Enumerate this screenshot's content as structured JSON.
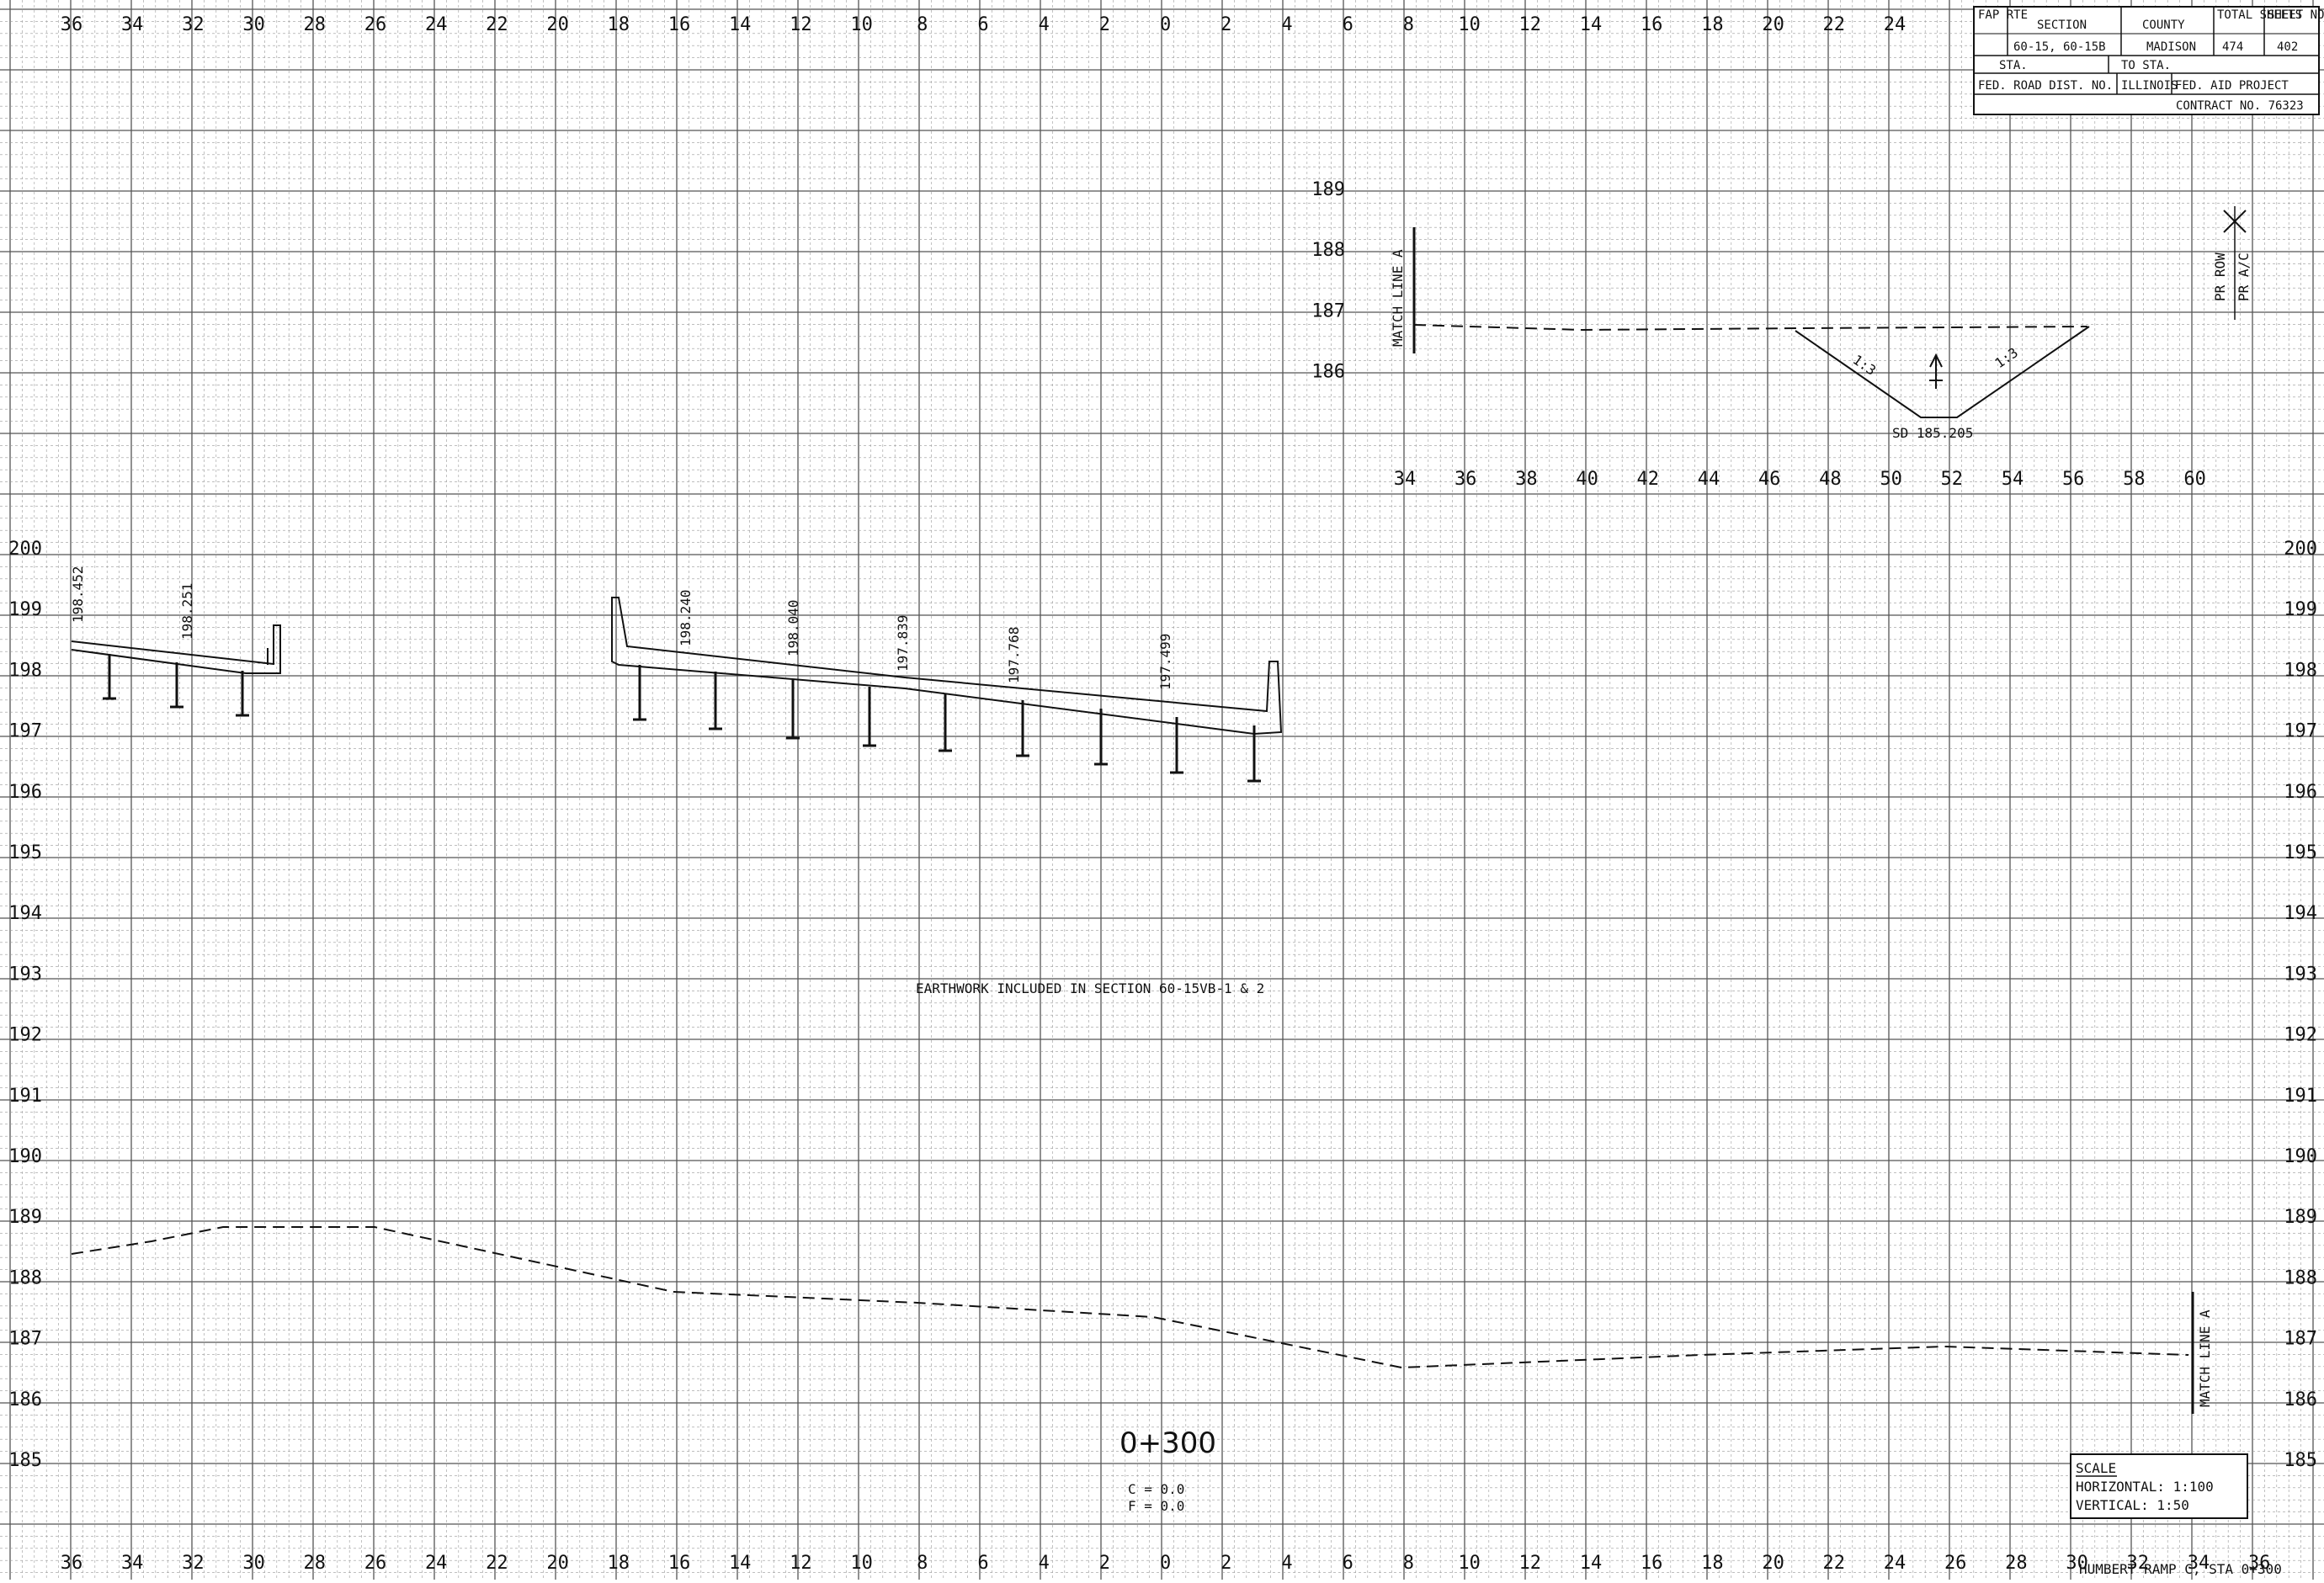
{
  "title_block": {
    "fap_rte_label": "FAP RTE",
    "section_label": "SECTION",
    "county_label": "COUNTY",
    "total_sheets_label": "TOTAL SHEETS",
    "sheet_no_label": "SHEET NO.",
    "section_value": "60-15, 60-15B",
    "county_value": "MADISON",
    "total_sheets_value": "474",
    "sheet_no_value": "402",
    "sta_label": "STA.",
    "to_sta_label": "TO STA.",
    "fed_road_label": "FED. ROAD DIST. NO.",
    "state_label": "ILLINOIS",
    "fed_aid_label": "FED. AID PROJECT",
    "contract_label": "CONTRACT NO. 76323"
  },
  "top_axis": [
    "36",
    "34",
    "32",
    "30",
    "28",
    "26",
    "24",
    "22",
    "20",
    "18",
    "16",
    "14",
    "12",
    "10",
    "8",
    "6",
    "4",
    "2",
    "0",
    "2",
    "4",
    "6",
    "8",
    "10",
    "12",
    "14",
    "16",
    "18",
    "20",
    "22",
    "24"
  ],
  "bottom_axis": [
    "36",
    "34",
    "32",
    "30",
    "28",
    "26",
    "24",
    "22",
    "20",
    "18",
    "16",
    "14",
    "12",
    "10",
    "8",
    "6",
    "4",
    "2",
    "0",
    "2",
    "4",
    "6",
    "8",
    "10",
    "12",
    "14",
    "16",
    "18",
    "20",
    "22",
    "24",
    "26",
    "28",
    "30",
    "32",
    "34",
    "36"
  ],
  "inset_axis_x": [
    "34",
    "36",
    "38",
    "40",
    "42",
    "44",
    "46",
    "48",
    "50",
    "52",
    "54",
    "56",
    "58",
    "60"
  ],
  "inset_axis_y": [
    "189",
    "188",
    "187",
    "186"
  ],
  "main_axis_y": [
    "200",
    "199",
    "198",
    "197",
    "196",
    "195",
    "194",
    "193",
    "192",
    "191",
    "190",
    "189",
    "188",
    "187",
    "186",
    "185"
  ],
  "inset": {
    "match_line": "MATCH LINE A",
    "slope_left": "1:3",
    "slope_right": "1:3",
    "sd_label": "SD 185.205"
  },
  "right_labels": {
    "pr_row": "PR ROW",
    "pr_ac": "PR A/C"
  },
  "elevations": [
    "198.452",
    "198.251",
    "198.240",
    "198.040",
    "197.839",
    "197.768",
    "197.499"
  ],
  "note": "EARTHWORK INCLUDED IN SECTION 60-15VB-1 & 2",
  "station": {
    "label": "0+300",
    "c": "C = 0.0",
    "f": "F = 0.0"
  },
  "match_line_main": "MATCH LINE A",
  "scale_box": {
    "title": "SCALE",
    "horizontal": "HORIZONTAL:  1:100",
    "vertical": "VERTICAL:  1:50"
  },
  "footer": "HUMBERT RAMP C, STA 0+300"
}
